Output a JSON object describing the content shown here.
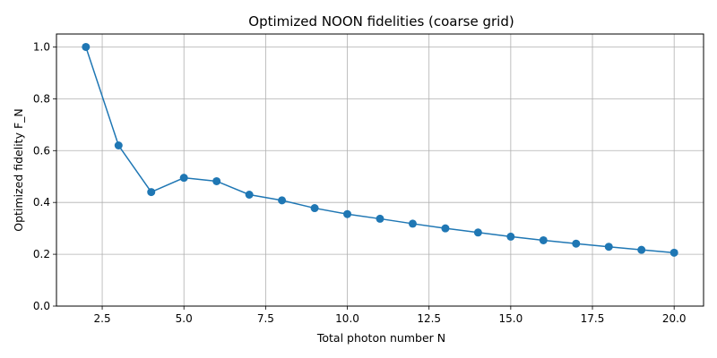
{
  "chart_data": {
    "type": "line",
    "title": "Optimized NOON fidelities (coarse grid)",
    "xlabel": "Total photon number N",
    "ylabel": "Optimized fidelity F_N",
    "xlim": [
      1.1,
      20.9
    ],
    "ylim": [
      0,
      1.05
    ],
    "xticks": [
      2.5,
      5.0,
      7.5,
      10.0,
      12.5,
      15.0,
      17.5,
      20.0
    ],
    "xtick_labels": [
      "2.5",
      "5.0",
      "7.5",
      "10.0",
      "12.5",
      "15.0",
      "17.5",
      "20.0"
    ],
    "yticks": [
      0.0,
      0.2,
      0.4,
      0.6,
      0.8,
      1.0
    ],
    "ytick_labels": [
      "0.0",
      "0.2",
      "0.4",
      "0.6",
      "0.8",
      "1.0"
    ],
    "grid": true,
    "color": "#1f77b4",
    "marker": "circle",
    "series": [
      {
        "x": [
          2,
          3,
          4,
          5,
          6,
          7,
          8,
          9,
          10,
          11,
          12,
          13,
          14,
          15,
          16,
          17,
          18,
          19,
          20
        ],
        "values": [
          1.0,
          0.62,
          0.44,
          0.495,
          0.482,
          0.43,
          0.408,
          0.378,
          0.355,
          0.337,
          0.318,
          0.3,
          0.284,
          0.268,
          0.254,
          0.241,
          0.229,
          0.217,
          0.206
        ]
      }
    ]
  }
}
